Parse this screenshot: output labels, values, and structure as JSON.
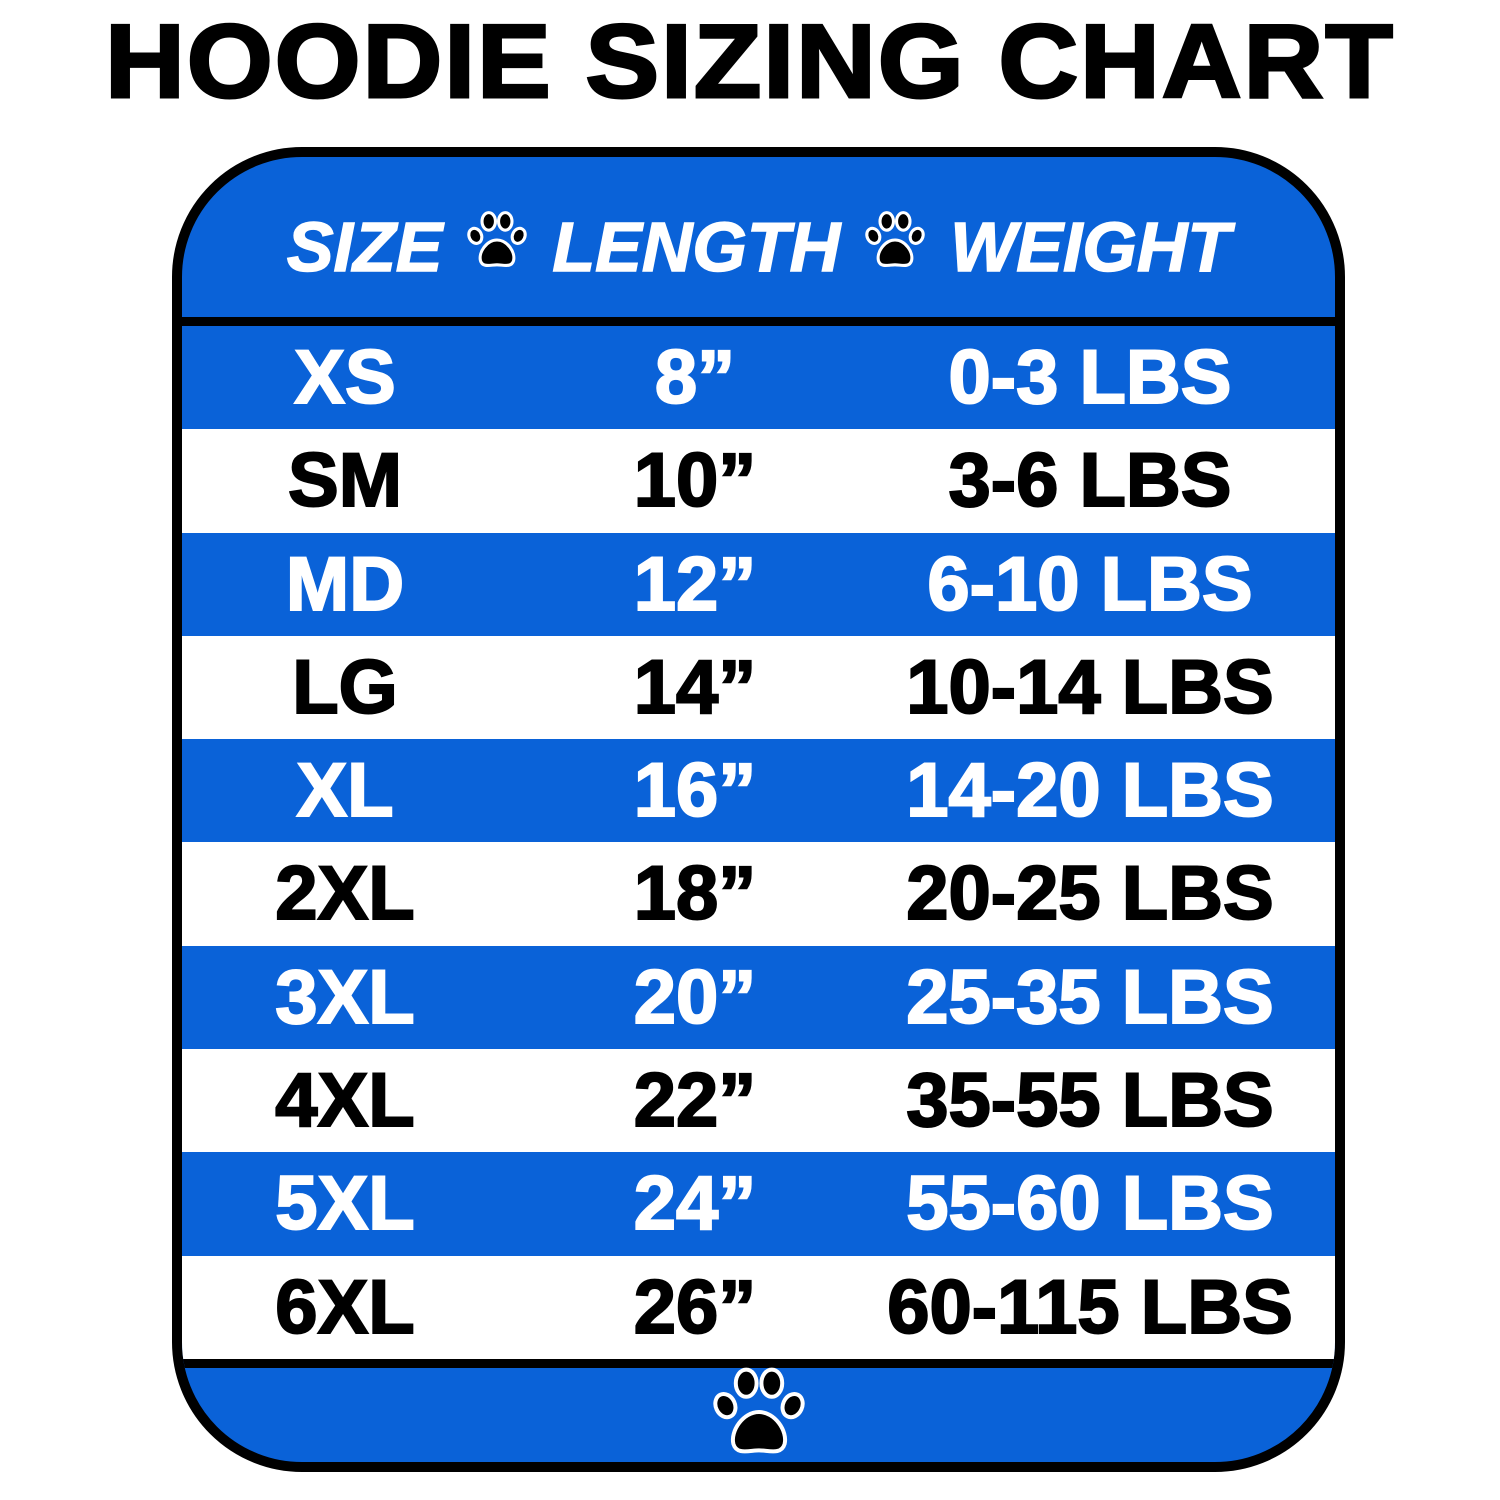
{
  "title": "HOODIE SIZING CHART",
  "header": {
    "col1": "SIZE",
    "col2": "LENGTH",
    "col3": "WEIGHT",
    "separator_icon": "paw-print-icon"
  },
  "rows": [
    {
      "size": "XS",
      "length": "8”",
      "weight": "0-3 LBS"
    },
    {
      "size": "SM",
      "length": "10”",
      "weight": "3-6 LBS"
    },
    {
      "size": "MD",
      "length": "12”",
      "weight": "6-10 LBS"
    },
    {
      "size": "LG",
      "length": "14”",
      "weight": "10-14 LBS"
    },
    {
      "size": "XL",
      "length": "16”",
      "weight": "14-20 LBS"
    },
    {
      "size": "2XL",
      "length": "18”",
      "weight": "20-25 LBS"
    },
    {
      "size": "3XL",
      "length": "20”",
      "weight": "25-35 LBS"
    },
    {
      "size": "4XL",
      "length": "22”",
      "weight": "35-55 LBS"
    },
    {
      "size": "5XL",
      "length": "24”",
      "weight": "55-60 LBS"
    },
    {
      "size": "6XL",
      "length": "26”",
      "weight": "60-115 LBS"
    }
  ],
  "footer_icon": "paw-print-icon",
  "colors": {
    "blue": "#0a62d8",
    "white": "#ffffff",
    "black": "#000000"
  }
}
